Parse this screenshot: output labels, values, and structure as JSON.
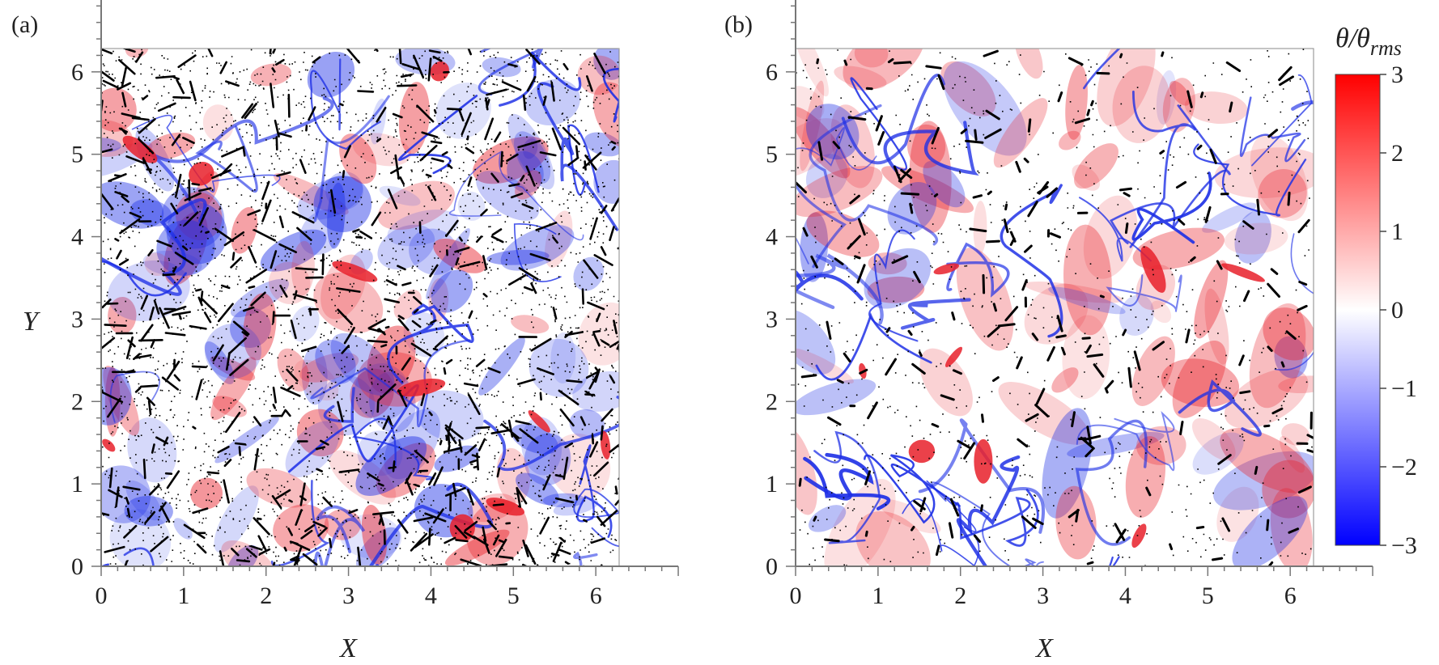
{
  "chart_data": [
    {
      "type": "heatmap",
      "panel_label": "(a)",
      "xlabel": "X",
      "ylabel": "Y",
      "xlim": [
        0,
        6.283
      ],
      "ylim": [
        0,
        6.283
      ],
      "x_ticks": [
        "0",
        "1",
        "2",
        "3",
        "4",
        "5",
        "6"
      ],
      "y_ticks": [
        "0",
        "1",
        "2",
        "3",
        "4",
        "5",
        "6"
      ],
      "field": "temperature fluctuation θ/θrms with inertial particles overlaid (dense)",
      "colors": {
        "positive": "#e8202a",
        "zero": "#ffffff",
        "negative": "#1d2fe6",
        "particles": "#000000"
      }
    },
    {
      "type": "heatmap",
      "panel_label": "(b)",
      "xlabel": "X",
      "ylabel": "",
      "xlim": [
        0,
        6.283
      ],
      "ylim": [
        0,
        6.283
      ],
      "x_ticks": [
        "0",
        "1",
        "2",
        "3",
        "4",
        "5",
        "6"
      ],
      "y_ticks": [
        "0",
        "1",
        "2",
        "3",
        "4",
        "5",
        "6"
      ],
      "field": "temperature fluctuation θ/θrms with inertial particles overlaid (sparse, clustered on fronts)",
      "colors": {
        "positive": "#e8202a",
        "zero": "#ffffff",
        "negative": "#1d2fe6",
        "particles": "#000000"
      }
    }
  ],
  "colorbar": {
    "title_main": "θ/θ",
    "title_sub": "rms",
    "ticks": [
      "3",
      "2",
      "1",
      "0",
      "−1",
      "−2",
      "−3"
    ],
    "range": [
      -3,
      3
    ],
    "colors": {
      "max": "#ff0000",
      "mid": "#ffffff",
      "min": "#0000ff"
    }
  }
}
